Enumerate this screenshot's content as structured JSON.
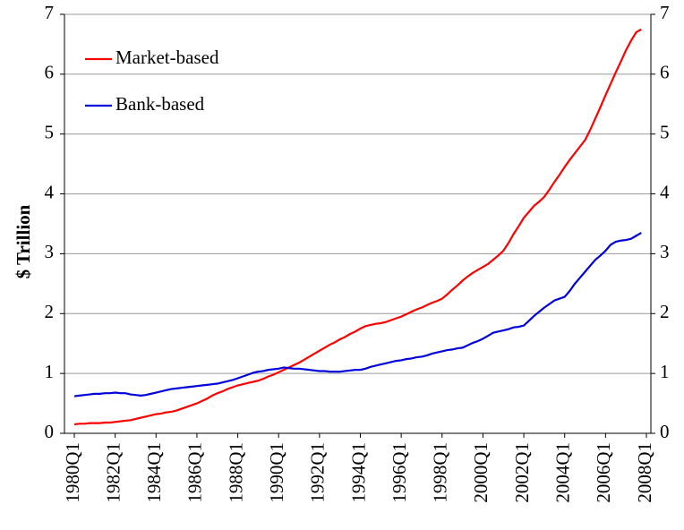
{
  "chart_data": {
    "type": "line",
    "y_label": "$ Trillion",
    "categories": [
      "1980Q1",
      null,
      null,
      null,
      null,
      null,
      null,
      null,
      "1982Q1",
      null,
      null,
      null,
      null,
      null,
      null,
      null,
      "1984Q1",
      null,
      null,
      null,
      null,
      null,
      null,
      null,
      "1986Q1",
      null,
      null,
      null,
      null,
      null,
      null,
      null,
      "1988Q1",
      null,
      null,
      null,
      null,
      null,
      null,
      null,
      "1990Q1",
      null,
      null,
      null,
      null,
      null,
      null,
      null,
      "1992Q1",
      null,
      null,
      null,
      null,
      null,
      null,
      null,
      "1994Q1",
      null,
      null,
      null,
      null,
      null,
      null,
      null,
      "1996Q1",
      null,
      null,
      null,
      null,
      null,
      null,
      null,
      "1998Q1",
      null,
      null,
      null,
      null,
      null,
      null,
      null,
      "2000Q1",
      null,
      null,
      null,
      null,
      null,
      null,
      null,
      "2002Q1",
      null,
      null,
      null,
      null,
      null,
      null,
      null,
      "2004Q1",
      null,
      null,
      null,
      null,
      null,
      null,
      null,
      "2006Q1",
      null,
      null,
      null,
      null,
      null,
      null,
      null,
      "2008Q1"
    ],
    "series": [
      {
        "name": "Market-based",
        "color": "#ff0000",
        "values": [
          0.15,
          0.16,
          0.16,
          0.17,
          0.17,
          0.17,
          0.18,
          0.18,
          0.19,
          0.2,
          0.21,
          0.22,
          0.24,
          0.26,
          0.28,
          0.3,
          0.32,
          0.33,
          0.35,
          0.36,
          0.38,
          0.41,
          0.44,
          0.47,
          0.5,
          0.54,
          0.58,
          0.63,
          0.67,
          0.7,
          0.74,
          0.77,
          0.8,
          0.82,
          0.84,
          0.86,
          0.88,
          0.91,
          0.95,
          0.98,
          1.02,
          1.06,
          1.1,
          1.14,
          1.18,
          1.23,
          1.28,
          1.33,
          1.38,
          1.43,
          1.48,
          1.52,
          1.57,
          1.61,
          1.66,
          1.7,
          1.75,
          1.79,
          1.81,
          1.83,
          1.84,
          1.86,
          1.89,
          1.92,
          1.95,
          1.99,
          2.03,
          2.07,
          2.1,
          2.14,
          2.18,
          2.21,
          2.25,
          2.32,
          2.4,
          2.47,
          2.55,
          2.62,
          2.68,
          2.73,
          2.78,
          2.83,
          2.9,
          2.97,
          3.05,
          3.18,
          3.33,
          3.46,
          3.6,
          3.7,
          3.8,
          3.87,
          3.95,
          4.07,
          4.2,
          4.32,
          4.45,
          4.57,
          4.68,
          4.79,
          4.9,
          5.07,
          5.26,
          5.45,
          5.65,
          5.84,
          6.03,
          6.21,
          6.4,
          6.56,
          6.7,
          6.75,
          null
        ]
      },
      {
        "name": "Bank-based",
        "color": "#0000dd",
        "values": [
          0.62,
          0.63,
          0.64,
          0.65,
          0.66,
          0.66,
          0.67,
          0.67,
          0.68,
          0.67,
          0.67,
          0.65,
          0.64,
          0.63,
          0.64,
          0.66,
          0.68,
          0.7,
          0.72,
          0.74,
          0.75,
          0.76,
          0.77,
          0.78,
          0.79,
          0.8,
          0.81,
          0.82,
          0.83,
          0.85,
          0.87,
          0.89,
          0.92,
          0.95,
          0.98,
          1.01,
          1.03,
          1.04,
          1.06,
          1.07,
          1.08,
          1.1,
          1.09,
          1.08,
          1.08,
          1.07,
          1.06,
          1.05,
          1.04,
          1.04,
          1.03,
          1.03,
          1.03,
          1.04,
          1.05,
          1.06,
          1.06,
          1.08,
          1.11,
          1.13,
          1.15,
          1.17,
          1.19,
          1.21,
          1.22,
          1.24,
          1.25,
          1.27,
          1.28,
          1.3,
          1.33,
          1.35,
          1.37,
          1.39,
          1.4,
          1.42,
          1.43,
          1.47,
          1.51,
          1.54,
          1.58,
          1.63,
          1.68,
          1.7,
          1.72,
          1.74,
          1.77,
          1.78,
          1.8,
          1.88,
          1.96,
          2.03,
          2.1,
          2.16,
          2.22,
          2.25,
          2.28,
          2.38,
          2.5,
          2.6,
          2.7,
          2.8,
          2.9,
          2.97,
          3.05,
          3.15,
          3.2,
          3.22,
          3.23,
          3.25,
          3.3,
          3.35,
          null
        ]
      }
    ],
    "ylim": [
      0,
      7
    ],
    "yticks": [
      0,
      1,
      2,
      3,
      4,
      5,
      6,
      7
    ],
    "y2lim": [
      0,
      7
    ],
    "y2ticks": [
      0,
      1,
      2,
      3,
      4,
      5,
      6,
      7
    ],
    "grid": true,
    "legend": "upper left"
  }
}
